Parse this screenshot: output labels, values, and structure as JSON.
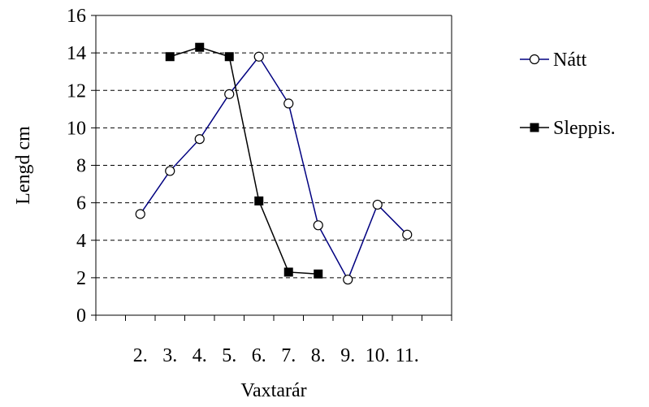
{
  "chart_data": {
    "type": "line",
    "title": "",
    "xlabel": "Vaxtarár",
    "ylabel": "Lengd cm",
    "x": [
      1,
      2,
      3,
      4,
      5,
      6,
      7,
      8,
      9,
      10,
      11
    ],
    "x_tick_labels": [
      "2.",
      "3.",
      "4.",
      "5.",
      "6.",
      "7.",
      "8.",
      "9.",
      "10.",
      "11."
    ],
    "x_tick_label_positions": [
      1.5,
      2.5,
      3.5,
      4.5,
      5.5,
      6.5,
      7.5,
      8.5,
      9.5,
      10.5
    ],
    "xlim": [
      0,
      12
    ],
    "ylim": [
      0,
      16
    ],
    "y_ticks": [
      0,
      2,
      4,
      6,
      8,
      10,
      12,
      14,
      16
    ],
    "y_tick_labels": [
      "0",
      "2",
      "4",
      "6",
      "8",
      "10",
      "12",
      "14",
      "16"
    ],
    "grid": "horizontal dashed",
    "legend_position": "right",
    "series": [
      {
        "name": "Nátt",
        "marker": "circle-open",
        "color": "#000080",
        "points": [
          {
            "x": 1.5,
            "y": 5.4
          },
          {
            "x": 2.5,
            "y": 7.7
          },
          {
            "x": 3.5,
            "y": 9.4
          },
          {
            "x": 4.5,
            "y": 11.8
          },
          {
            "x": 5.5,
            "y": 13.8
          },
          {
            "x": 6.5,
            "y": 11.3
          },
          {
            "x": 7.5,
            "y": 4.8
          },
          {
            "x": 8.5,
            "y": 1.9
          },
          {
            "x": 9.5,
            "y": 5.9
          },
          {
            "x": 10.5,
            "y": 4.3
          }
        ]
      },
      {
        "name": "Sleppis.",
        "marker": "square-filled",
        "color": "#000000",
        "points": [
          {
            "x": 2.5,
            "y": 13.8
          },
          {
            "x": 3.5,
            "y": 14.3
          },
          {
            "x": 4.5,
            "y": 13.8
          },
          {
            "x": 5.5,
            "y": 6.1
          },
          {
            "x": 6.5,
            "y": 2.3
          },
          {
            "x": 7.5,
            "y": 2.2
          }
        ]
      }
    ]
  }
}
